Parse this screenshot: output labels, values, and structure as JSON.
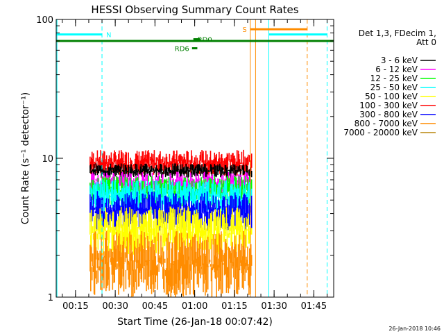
{
  "chart_data": {
    "type": "line",
    "title": "HESSI Observing Summary Count Rates",
    "ylabel": "Count Rate (s⁻¹ detector⁻¹)",
    "xlabel": "Start Time (26-Jan-18 00:07:42)",
    "x_unit": "minutes after 00:00 UT",
    "xlim": [
      7.7,
      112.5
    ],
    "ylim": [
      1,
      100
    ],
    "y_scale": "log",
    "y_ticks": [
      {
        "value": 1,
        "label": "1"
      },
      {
        "value": 10,
        "label": "10"
      },
      {
        "value": 100,
        "label": "100"
      }
    ],
    "x_ticks": [
      {
        "value": 15,
        "label": "00:15"
      },
      {
        "value": 30,
        "label": "00:30"
      },
      {
        "value": 45,
        "label": "00:45"
      },
      {
        "value": 60,
        "label": "01:00"
      },
      {
        "value": 75,
        "label": "01:15"
      },
      {
        "value": 90,
        "label": "01:30"
      },
      {
        "value": 105,
        "label": "01:45"
      }
    ],
    "legend": {
      "placement": "right",
      "header": [
        "Det 1,3, FDecim 1,",
        "Att 0"
      ],
      "entries": [
        {
          "label": "3 - 6 keV",
          "color": "#000000"
        },
        {
          "label": "6 - 12 keV",
          "color": "#ff00ff"
        },
        {
          "label": "12 - 25 keV",
          "color": "#00ff00"
        },
        {
          "label": "25 - 50 keV",
          "color": "#00ffff"
        },
        {
          "label": "50 - 100 keV",
          "color": "#ffff00"
        },
        {
          "label": "100 - 300 keV",
          "color": "#ff0000"
        },
        {
          "label": "300 - 800 keV",
          "color": "#0000ff"
        },
        {
          "label": "800 - 7000 keV",
          "color": "#ff8c00"
        },
        {
          "label": "7000 - 20000 keV",
          "color": "#b8860b"
        }
      ]
    },
    "data_interval": [
      20.5,
      81.5
    ],
    "series": [
      {
        "name": "100 - 300 keV",
        "color": "#ff0000",
        "band": [
          7.5,
          11.5
        ]
      },
      {
        "name": "3 - 6 keV",
        "color": "#000000",
        "band": [
          7.2,
          9.2
        ]
      },
      {
        "name": "6 - 12 keV",
        "color": "#ff00ff",
        "band": [
          5.5,
          8.0
        ]
      },
      {
        "name": "12 - 25 keV",
        "color": "#00ff00",
        "band": [
          4.5,
          7.5
        ]
      },
      {
        "name": "25 - 50 keV",
        "color": "#00ffff",
        "band": [
          4.0,
          7.0
        ]
      },
      {
        "name": "300 - 800 keV",
        "color": "#0000ff",
        "band": [
          3.0,
          5.8
        ]
      },
      {
        "name": "50 - 100 keV",
        "color": "#ffff00",
        "band": [
          2.0,
          4.5
        ]
      },
      {
        "name": "800 - 7000 keV",
        "color": "#ff8c00",
        "band": [
          1.0,
          3.0
        ]
      }
    ],
    "flags": [
      {
        "type": "night",
        "label": "N",
        "color": "#00ffff",
        "y": 78,
        "intervals": [
          [
            7.7,
            25.0
          ],
          [
            88.0,
            110.0
          ]
        ]
      },
      {
        "type": "saa",
        "label": "S",
        "color": "#ff8c00",
        "y": 85,
        "intervals": [
          [
            81.0,
            102.5
          ]
        ]
      },
      {
        "type": "decimation",
        "label": "",
        "color": "#008000",
        "y": 70,
        "intervals": [
          [
            7.7,
            112.5
          ]
        ]
      },
      {
        "type": "rd",
        "label": "RD0",
        "color": "#008000",
        "y": 72,
        "intervals": [
          [
            59.5,
            62.0
          ]
        ]
      },
      {
        "type": "rd",
        "label": "RD6",
        "color": "#008000",
        "y": 62,
        "intervals": [
          [
            59.0,
            61.0
          ]
        ]
      }
    ],
    "vlines": [
      {
        "x": 25.0,
        "color": "#00ffff",
        "style": "dashed"
      },
      {
        "x": 8.0,
        "color": "#00ffff",
        "style": "solid"
      },
      {
        "x": 88.0,
        "color": "#00ffff",
        "style": "solid"
      },
      {
        "x": 110.0,
        "color": "#00ffff",
        "style": "dashed"
      },
      {
        "x": 81.0,
        "color": "#ff8c00",
        "style": "solid"
      },
      {
        "x": 83.0,
        "color": "#ff8c00",
        "style": "solid"
      },
      {
        "x": 102.5,
        "color": "#ff8c00",
        "style": "dashed"
      }
    ],
    "footer": "26-Jan-2018 10:46"
  }
}
